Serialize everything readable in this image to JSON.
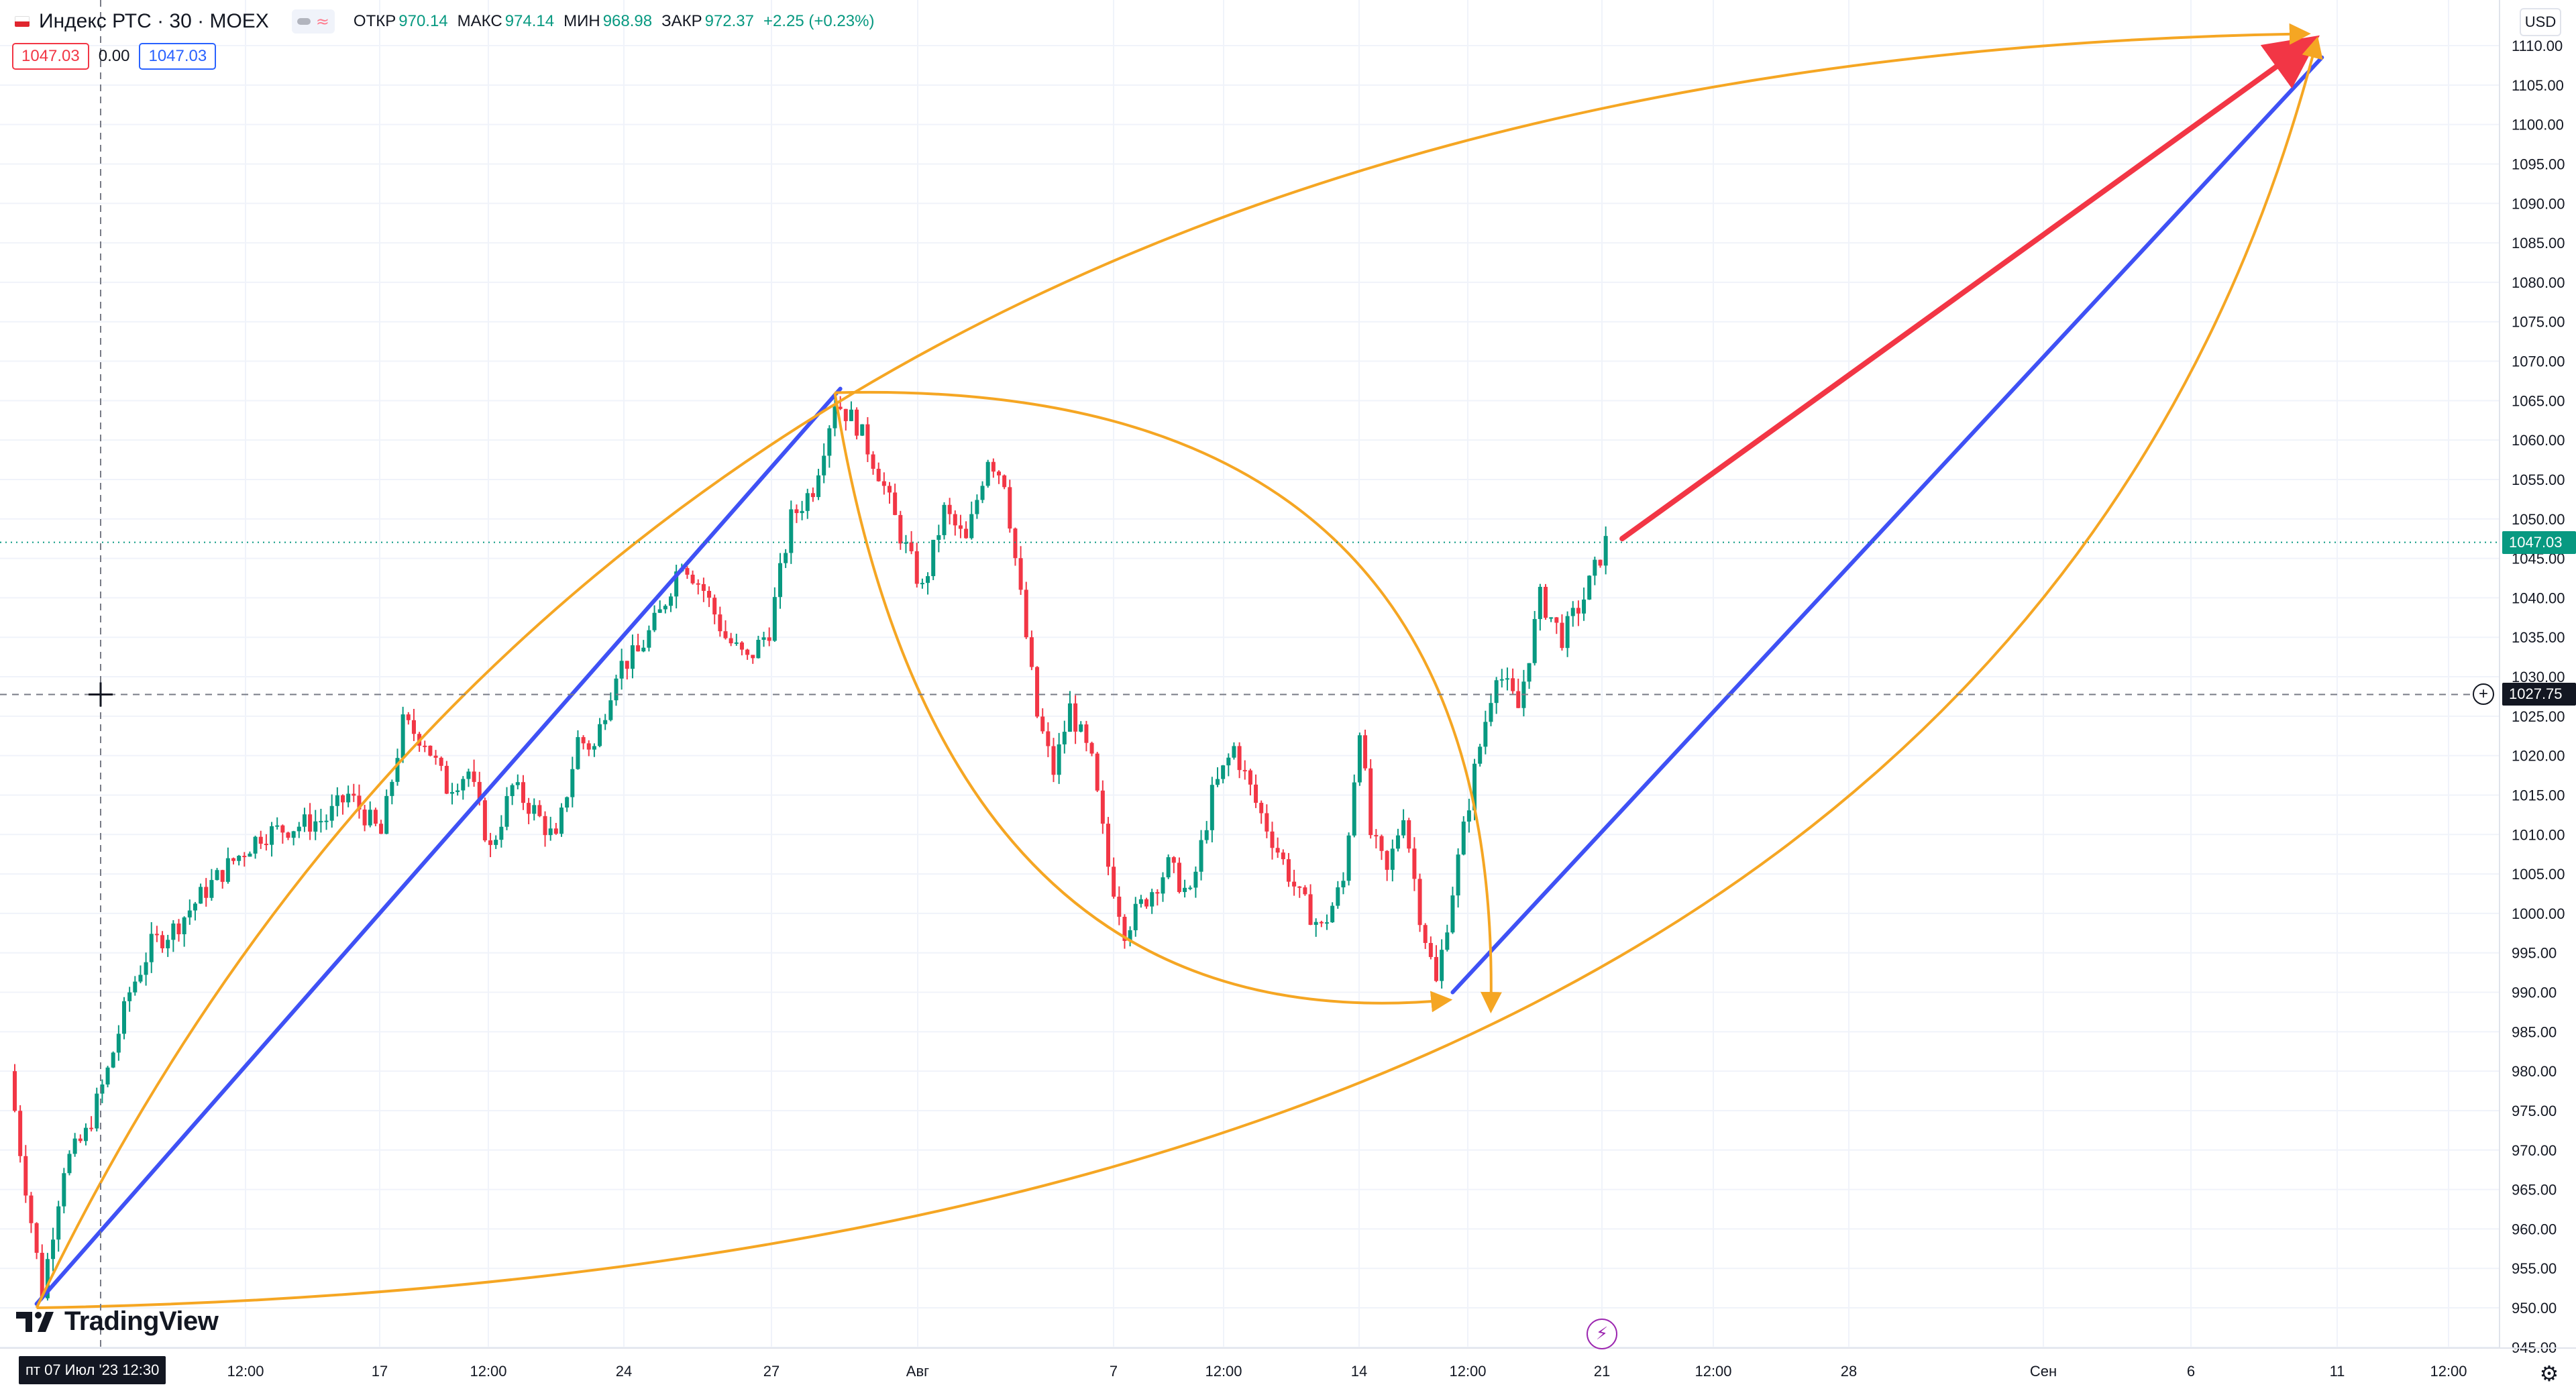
{
  "legend": {
    "symbol_title": "Индекс РТС · 30 · MOEX",
    "wave_icon": "≈",
    "open_label": "ОТКР",
    "open_value": "970.14",
    "high_label": "МАКС",
    "high_value": "974.14",
    "low_label": "МИН",
    "low_value": "968.98",
    "close_label": "ЗАКР",
    "close_value": "972.37",
    "change": "+2.25 (+0.23%)"
  },
  "price_chips": {
    "sell": "1047.03",
    "spread": "0.00",
    "buy": "1047.03"
  },
  "currency": "USD",
  "watermark": "TradingView",
  "crosshair": {
    "date_label": "пт 07 Июл '23   12:30",
    "price_label": "1027.75",
    "price_value": 1027.75
  },
  "last_price": {
    "label": "1047.03",
    "value": 1047.03
  },
  "colors": {
    "up": "#089981",
    "down": "#f23645",
    "blue_line": "#3f51f5",
    "orange_curve": "#f5a623",
    "red_arrow": "#f23645",
    "grid": "#f0f3fa",
    "text": "#131722"
  },
  "chart_data": {
    "type": "candlestick",
    "series_name": "Индекс РТС",
    "timeframe": "30",
    "y_range": [
      942,
      1117
    ],
    "y_ticks": [
      945.0,
      950.0,
      955.0,
      960.0,
      965.0,
      970.0,
      975.0,
      980.0,
      985.0,
      990.0,
      995.0,
      1000.0,
      1005.0,
      1010.0,
      1015.0,
      1020.0,
      1025.0,
      1030.0,
      1035.0,
      1040.0,
      1045.0,
      1050.0,
      1055.0,
      1060.0,
      1065.0,
      1070.0,
      1075.0,
      1080.0,
      1085.0,
      1090.0,
      1095.0,
      1100.0,
      1105.0,
      1110.0
    ],
    "x_ticks": [
      "12:00",
      "17",
      "12:00",
      "24",
      "27",
      "Авг",
      "7",
      "12:00",
      "14",
      "12:00",
      "21",
      "12:00",
      "28",
      "Сен",
      "6",
      "11",
      "12:00"
    ],
    "price_path": [
      [
        0,
        980
      ],
      [
        2,
        970
      ],
      [
        6,
        952
      ],
      [
        10,
        968
      ],
      [
        14,
        972
      ],
      [
        18,
        980
      ],
      [
        22,
        990
      ],
      [
        26,
        996
      ],
      [
        30,
        998
      ],
      [
        36,
        1003
      ],
      [
        40,
        1006
      ],
      [
        46,
        1010
      ],
      [
        52,
        1011
      ],
      [
        58,
        1012
      ],
      [
        62,
        1015
      ],
      [
        68,
        1010
      ],
      [
        72,
        1024
      ],
      [
        76,
        1022
      ],
      [
        80,
        1016
      ],
      [
        84,
        1018
      ],
      [
        88,
        1008
      ],
      [
        92,
        1016
      ],
      [
        96,
        1013
      ],
      [
        100,
        1009
      ],
      [
        104,
        1022
      ],
      [
        107,
        1021
      ],
      [
        111,
        1031
      ],
      [
        115,
        1033
      ],
      [
        119,
        1038
      ],
      [
        123,
        1045
      ],
      [
        127,
        1041
      ],
      [
        131,
        1035
      ],
      [
        135,
        1032
      ],
      [
        139,
        1036
      ],
      [
        143,
        1050
      ],
      [
        147,
        1054
      ],
      [
        151,
        1065
      ],
      [
        155,
        1062
      ],
      [
        159,
        1056
      ],
      [
        163,
        1048
      ],
      [
        167,
        1041
      ],
      [
        171,
        1051
      ],
      [
        175,
        1047
      ],
      [
        179,
        1058
      ],
      [
        182,
        1055
      ],
      [
        185,
        1040
      ],
      [
        188,
        1025
      ],
      [
        191,
        1018
      ],
      [
        194,
        1026
      ],
      [
        198,
        1019
      ],
      [
        201,
        1006
      ],
      [
        204,
        998
      ],
      [
        208,
        1002
      ],
      [
        212,
        1006
      ],
      [
        216,
        1002
      ],
      [
        220,
        1015
      ],
      [
        224,
        1021
      ],
      [
        228,
        1014
      ],
      [
        232,
        1008
      ],
      [
        236,
        1002
      ],
      [
        240,
        998
      ],
      [
        244,
        1004
      ],
      [
        247,
        1024
      ],
      [
        249,
        1010
      ],
      [
        252,
        1005
      ],
      [
        255,
        1013
      ],
      [
        258,
        1000
      ],
      [
        261,
        991
      ],
      [
        264,
        1003
      ],
      [
        268,
        1018
      ],
      [
        272,
        1031
      ],
      [
        276,
        1026
      ],
      [
        280,
        1040
      ],
      [
        284,
        1035
      ],
      [
        288,
        1040
      ],
      [
        292,
        1047.03
      ]
    ]
  },
  "drawings": {
    "blue_trend_1": {
      "from": [
        4,
        950.5
      ],
      "to": [
        151,
        1066.5
      ]
    },
    "blue_trend_2": {
      "from": [
        263,
        990.0
      ],
      "to": [
        422,
        1108.5
      ]
    },
    "red_arrow": {
      "from": [
        294,
        1047.5
      ],
      "to": [
        420,
        1110.5
      ]
    },
    "orange_outer_top": {
      "from": [
        4,
        950.0
      ],
      "to": [
        419,
        1111.5
      ]
    },
    "orange_outer_bottom": {
      "from": [
        4,
        950.0
      ],
      "to": [
        421,
        1110.5
      ]
    },
    "orange_inner_top": {
      "from": [
        150,
        1066.0
      ],
      "to": [
        270,
        988.0
      ]
    },
    "orange_inner_bottom": {
      "from": [
        150,
        1066.0
      ],
      "to": [
        262,
        989.0
      ]
    }
  }
}
